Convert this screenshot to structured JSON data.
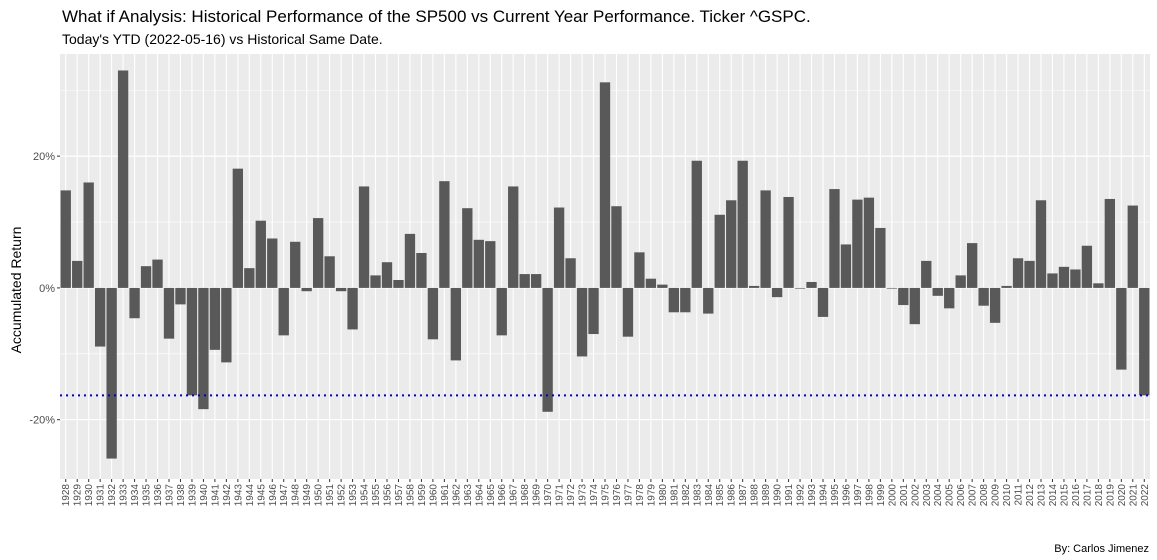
{
  "chart_data": {
    "type": "bar",
    "title": "What if Analysis: Historical Performance of the SP500 vs Current Year Performance. Ticker ^GSPC.",
    "subtitle": "Today's YTD (2022-05-16) vs Historical Same Date.",
    "ylabel": "Accumulated Return",
    "caption": "By: Carlos Jimenez",
    "ylim": [
      -0.29,
      0.355
    ],
    "yticks": [
      -0.2,
      0,
      0.2
    ],
    "ytick_labels": [
      "-20%",
      "0%",
      "20%"
    ],
    "bar_color": "#595959",
    "reference_line": {
      "value": -0.163,
      "color": "#0000cc",
      "style": "dotted"
    },
    "categories": [
      "1928",
      "1929",
      "1930",
      "1931",
      "1932",
      "1933",
      "1934",
      "1935",
      "1936",
      "1937",
      "1938",
      "1939",
      "1940",
      "1941",
      "1942",
      "1943",
      "1944",
      "1945",
      "1946",
      "1947",
      "1948",
      "1949",
      "1950",
      "1951",
      "1952",
      "1953",
      "1954",
      "1955",
      "1956",
      "1957",
      "1958",
      "1959",
      "1960",
      "1961",
      "1962",
      "1963",
      "1964",
      "1965",
      "1966",
      "1967",
      "1968",
      "1969",
      "1970",
      "1971",
      "1972",
      "1973",
      "1974",
      "1975",
      "1976",
      "1977",
      "1978",
      "1979",
      "1980",
      "1981",
      "1982",
      "1983",
      "1984",
      "1985",
      "1986",
      "1987",
      "1988",
      "1989",
      "1990",
      "1991",
      "1992",
      "1993",
      "1994",
      "1995",
      "1996",
      "1997",
      "1998",
      "1999",
      "2000",
      "2001",
      "2002",
      "2003",
      "2004",
      "2005",
      "2006",
      "2007",
      "2008",
      "2009",
      "2010",
      "2011",
      "2012",
      "2013",
      "2014",
      "2015",
      "2016",
      "2017",
      "2018",
      "2019",
      "2020",
      "2021",
      "2022"
    ],
    "values": [
      0.148,
      0.041,
      0.16,
      -0.089,
      -0.259,
      0.33,
      -0.046,
      0.033,
      0.043,
      -0.077,
      -0.025,
      -0.163,
      -0.184,
      -0.094,
      -0.113,
      0.181,
      0.03,
      0.102,
      0.075,
      -0.072,
      0.07,
      -0.005,
      0.106,
      0.048,
      -0.005,
      -0.063,
      0.154,
      0.019,
      0.039,
      0.012,
      0.082,
      0.053,
      -0.078,
      0.162,
      -0.11,
      0.121,
      0.073,
      0.071,
      -0.072,
      0.154,
      0.021,
      0.021,
      -0.188,
      0.122,
      0.045,
      -0.104,
      -0.07,
      0.312,
      0.124,
      -0.074,
      0.054,
      0.014,
      0.005,
      -0.037,
      -0.037,
      0.193,
      -0.039,
      0.111,
      0.133,
      0.193,
      0.003,
      0.148,
      -0.014,
      0.138,
      -0.001,
      0.009,
      -0.044,
      0.15,
      0.066,
      0.134,
      0.137,
      0.091,
      -0.001,
      -0.026,
      -0.055,
      0.041,
      -0.012,
      -0.031,
      0.019,
      0.068,
      -0.027,
      -0.053,
      0.003,
      0.045,
      0.041,
      0.133,
      0.022,
      0.032,
      0.028,
      0.064,
      0.007,
      0.135,
      -0.124,
      0.125,
      -0.163
    ]
  }
}
